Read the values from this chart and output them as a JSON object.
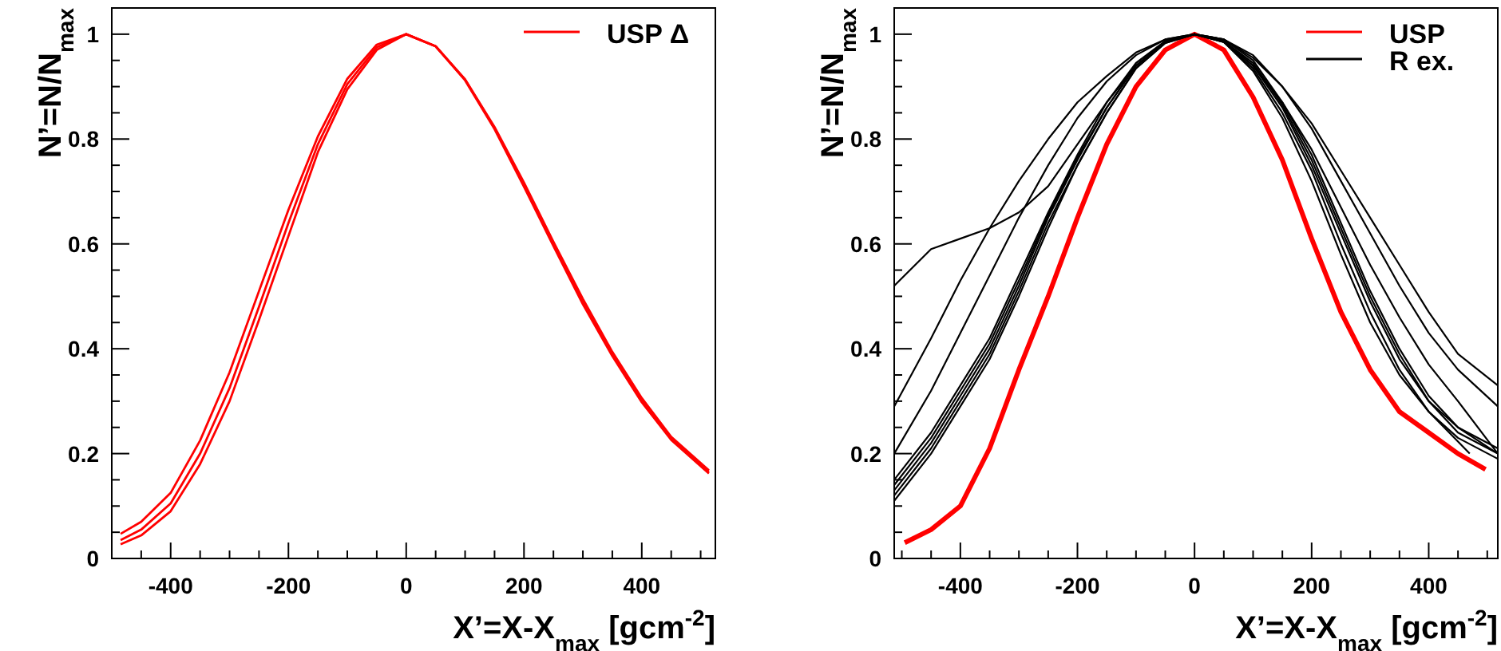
{
  "chart_data": [
    {
      "type": "line",
      "xlabel": "X’=X-X$_{max}$ [gcm$^{-2}$]",
      "ylabel": "N’=N/N$_{max}$",
      "legend": "top right",
      "xlim": [
        -500,
        525
      ],
      "ylim": [
        0,
        1.05
      ],
      "xticks": [
        {
          "value": -450,
          "label": null
        },
        -400,
        {
          "value": -350,
          "label": null
        },
        {
          "value": -300,
          "label": null
        },
        {
          "value": -250,
          "label": null
        },
        -200,
        {
          "value": -150,
          "label": null
        },
        {
          "value": -100,
          "label": null
        },
        {
          "value": -50,
          "label": null
        },
        0,
        {
          "value": 50,
          "label": null
        },
        {
          "value": 100,
          "label": null
        },
        {
          "value": 150,
          "label": null
        },
        200,
        {
          "value": 250,
          "label": null
        },
        {
          "value": 300,
          "label": null
        },
        {
          "value": 350,
          "label": null
        },
        400,
        {
          "value": 450,
          "label": null
        },
        {
          "value": 500,
          "label": null
        }
      ],
      "yticks": [
        0,
        {
          "value": 0.05,
          "label": null
        },
        {
          "value": 0.1,
          "label": null
        },
        {
          "value": 0.15,
          "label": null
        },
        0.2,
        {
          "value": 0.25,
          "label": null
        },
        {
          "value": 0.3,
          "label": null
        },
        {
          "value": 0.35,
          "label": null
        },
        0.4,
        {
          "value": 0.45,
          "label": null
        },
        {
          "value": 0.5,
          "label": null
        },
        {
          "value": 0.55,
          "label": null
        },
        0.6,
        {
          "value": 0.65,
          "label": null
        },
        {
          "value": 0.7,
          "label": null
        },
        {
          "value": 0.75,
          "label": null
        },
        0.8,
        {
          "value": 0.85,
          "label": null
        },
        {
          "value": 0.9,
          "label": null
        },
        {
          "value": 0.95,
          "label": null
        },
        1
      ],
      "x": [
        -485,
        -450,
        -400,
        -350,
        -300,
        -250,
        -200,
        -150,
        -100,
        -50,
        0,
        50,
        100,
        150,
        200,
        250,
        300,
        350,
        400,
        450,
        514
      ],
      "series": [
        {
          "name": "USP Δ",
          "color": "#ff0000",
          "values": [
            0.035,
            0.055,
            0.105,
            0.2,
            0.325,
            0.48,
            0.64,
            0.79,
            0.905,
            0.975,
            1,
            0.977,
            0.913,
            0.821,
            0.713,
            0.6,
            0.49,
            0.39,
            0.302,
            0.229,
            0.165
          ]
        },
        {
          "color": "#ff0000",
          "values": [
            0.047,
            0.07,
            0.125,
            0.225,
            0.355,
            0.51,
            0.665,
            0.805,
            0.915,
            0.98,
            1,
            0.977,
            0.914,
            0.823,
            0.717,
            0.604,
            0.495,
            0.394,
            0.306,
            0.232,
            0.168
          ]
        },
        {
          "color": "#ff0000",
          "values": [
            0.027,
            0.044,
            0.09,
            0.18,
            0.3,
            0.455,
            0.615,
            0.775,
            0.895,
            0.97,
            1,
            0.977,
            0.912,
            0.819,
            0.709,
            0.596,
            0.485,
            0.386,
            0.298,
            0.226,
            0.162
          ]
        }
      ]
    },
    {
      "type": "line",
      "xlabel": "X’=X-X$_{max}$ [gcm$^{-2}$]",
      "ylabel": "N’=N/N$_{max}$",
      "legend": "top right",
      "xlim": [
        -513,
        518
      ],
      "ylim": [
        0,
        1.05
      ],
      "xticks": [
        {
          "value": -500,
          "label": null
        },
        {
          "value": -450,
          "label": null
        },
        -400,
        {
          "value": -350,
          "label": null
        },
        {
          "value": -300,
          "label": null
        },
        {
          "value": -250,
          "label": null
        },
        -200,
        {
          "value": -150,
          "label": null
        },
        {
          "value": -100,
          "label": null
        },
        {
          "value": -50,
          "label": null
        },
        0,
        {
          "value": 50,
          "label": null
        },
        {
          "value": 100,
          "label": null
        },
        {
          "value": 150,
          "label": null
        },
        200,
        {
          "value": 250,
          "label": null
        },
        {
          "value": 300,
          "label": null
        },
        {
          "value": 350,
          "label": null
        },
        400,
        {
          "value": 450,
          "label": null
        },
        {
          "value": 500,
          "label": null
        }
      ],
      "yticks": [
        0,
        {
          "value": 0.05,
          "label": null
        },
        {
          "value": 0.1,
          "label": null
        },
        {
          "value": 0.15,
          "label": null
        },
        0.2,
        {
          "value": 0.25,
          "label": null
        },
        {
          "value": 0.3,
          "label": null
        },
        {
          "value": 0.35,
          "label": null
        },
        0.4,
        {
          "value": 0.45,
          "label": null
        },
        {
          "value": 0.5,
          "label": null
        },
        {
          "value": 0.55,
          "label": null
        },
        0.6,
        {
          "value": 0.65,
          "label": null
        },
        {
          "value": 0.7,
          "label": null
        },
        {
          "value": 0.75,
          "label": null
        },
        0.8,
        {
          "value": 0.85,
          "label": null
        },
        {
          "value": 0.9,
          "label": null
        },
        {
          "value": 0.95,
          "label": null
        },
        1
      ],
      "x": [
        -513,
        -450,
        -400,
        -350,
        -300,
        -250,
        -200,
        -150,
        -100,
        -50,
        0,
        50,
        100,
        150,
        200,
        250,
        300,
        350,
        400,
        450,
        518
      ],
      "series": [
        {
          "name": "USP",
          "color": "#ff0000",
          "x": [
            -495,
            -450,
            -400,
            -350,
            -300,
            -250,
            -200,
            -150,
            -100,
            -50,
            0,
            50,
            100,
            150,
            200,
            250,
            300,
            350,
            400,
            450,
            497
          ],
          "values": [
            0.03,
            0.055,
            0.1,
            0.21,
            0.36,
            0.5,
            0.65,
            0.79,
            0.9,
            0.97,
            1,
            0.97,
            0.88,
            0.76,
            0.61,
            0.47,
            0.36,
            0.28,
            0.24,
            0.2,
            0.17
          ]
        },
        {
          "name": "R ex.",
          "color": "#000000",
          "values": [
            0.52,
            0.59,
            0.61,
            0.63,
            0.66,
            0.71,
            0.79,
            0.87,
            0.94,
            0.985,
            1,
            0.985,
            0.94,
            0.87,
            0.78,
            0.67,
            0.56,
            0.46,
            0.37,
            0.3,
            0.2
          ]
        },
        {
          "color": "#000000",
          "values": [
            0.29,
            0.42,
            0.53,
            0.63,
            0.72,
            0.8,
            0.87,
            0.92,
            0.965,
            0.99,
            1,
            0.99,
            0.955,
            0.9,
            0.82,
            0.72,
            0.62,
            0.52,
            0.43,
            0.36,
            0.29
          ]
        },
        {
          "color": "#000000",
          "values": [
            0.2,
            0.32,
            0.43,
            0.54,
            0.65,
            0.75,
            0.84,
            0.91,
            0.96,
            0.99,
            1,
            0.99,
            0.96,
            0.9,
            0.83,
            0.74,
            0.65,
            0.56,
            0.47,
            0.39,
            0.33
          ]
        },
        {
          "color": "#000000",
          "values": [
            0.13,
            0.22,
            0.31,
            0.4,
            0.52,
            0.65,
            0.76,
            0.86,
            0.94,
            0.985,
            1,
            0.985,
            0.93,
            0.84,
            0.72,
            0.58,
            0.45,
            0.35,
            0.28,
            0.23,
            0.19
          ]
        },
        {
          "color": "#000000",
          "values": [
            0.15,
            0.24,
            0.33,
            0.42,
            0.54,
            0.66,
            0.77,
            0.87,
            0.945,
            0.987,
            1,
            0.988,
            0.94,
            0.86,
            0.75,
            0.62,
            0.49,
            0.38,
            0.3,
            0.25,
            0.2
          ]
        },
        {
          "color": "#000000",
          "values": [
            0.12,
            0.21,
            0.3,
            0.39,
            0.51,
            0.64,
            0.75,
            0.85,
            0.935,
            0.983,
            1,
            0.99,
            0.95,
            0.87,
            0.77,
            0.64,
            0.51,
            0.4,
            0.31,
            0.25,
            0.21
          ]
        },
        {
          "color": "#000000",
          "values": [
            0.11,
            0.2,
            0.29,
            0.38,
            0.5,
            0.63,
            0.75,
            0.85,
            0.935,
            0.983,
            1,
            0.987,
            0.945,
            0.865,
            0.76,
            0.63,
            0.5,
            0.39,
            0.3,
            0.24,
            0.2
          ]
        },
        {
          "color": "#000000",
          "x": [
            -513,
            -450,
            -400,
            -350,
            -300,
            -250,
            -200,
            -150,
            -100,
            -50,
            0,
            50,
            100,
            150,
            200,
            250,
            300,
            350,
            400,
            470
          ],
          "values": [
            0.14,
            0.23,
            0.32,
            0.41,
            0.53,
            0.655,
            0.765,
            0.86,
            0.94,
            0.985,
            1,
            0.985,
            0.935,
            0.85,
            0.74,
            0.6,
            0.47,
            0.36,
            0.28,
            0.2
          ]
        }
      ]
    }
  ]
}
